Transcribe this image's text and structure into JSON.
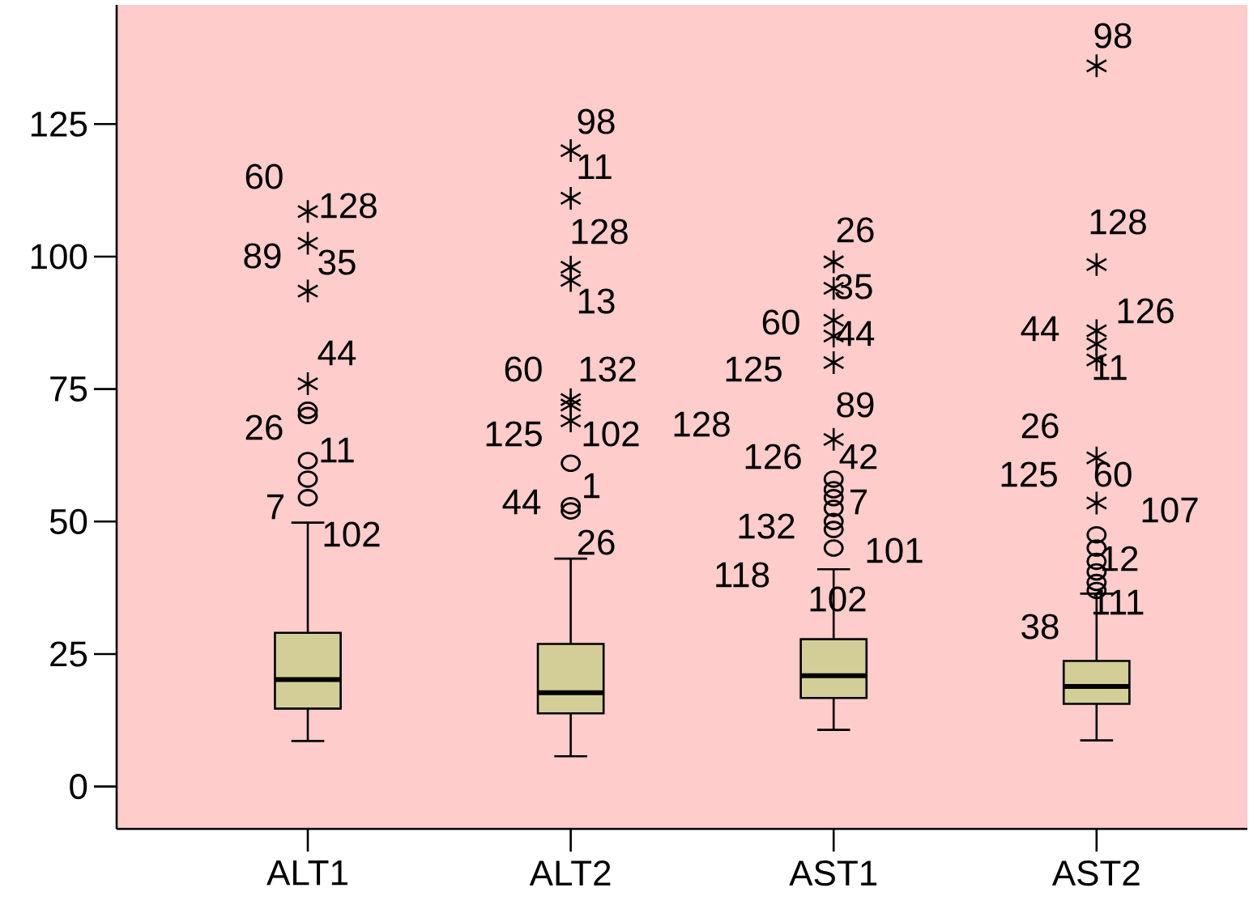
{
  "chart_data": {
    "type": "box",
    "categories": [
      "ALT1",
      "ALT2",
      "AST1",
      "AST2"
    ],
    "color": "#d3ce98",
    "boxes": [
      {
        "low": 8.6,
        "q1": 14.7,
        "median": 20.2,
        "q3": 29,
        "high": 49.8,
        "outliers": [
          108.5,
          102.5,
          93.5,
          76,
          71,
          70,
          61.5,
          58,
          54.5
        ]
      },
      {
        "low": 5.7,
        "q1": 13.8,
        "median": 17.7,
        "q3": 26.9,
        "high": 43,
        "outliers": [
          120,
          111,
          98,
          95.5,
          73,
          72,
          69,
          61,
          53,
          52
        ]
      },
      {
        "low": 10.7,
        "q1": 16.7,
        "median": 20.9,
        "q3": 27.8,
        "high": 41,
        "outliers": [
          99,
          94,
          88,
          85,
          80,
          65.5,
          58,
          56,
          54.5,
          52.5,
          50,
          48.5,
          45
        ]
      },
      {
        "low": 8.7,
        "q1": 15.6,
        "median": 18.9,
        "q3": 23.7,
        "high": 36.4,
        "outliers": [
          136,
          98.5,
          86,
          83.5,
          80.5,
          62,
          53.5,
          47.5,
          45,
          42.5,
          40.5,
          38.5,
          37
        ]
      }
    ],
    "ylim": [
      -8,
      147.5
    ],
    "yticks": [
      0,
      25,
      50,
      75,
      100,
      125
    ],
    "annotations": [
      "60",
      "128",
      "89",
      "35",
      "44",
      "26",
      "11",
      "7",
      "102",
      "98",
      "11",
      "128",
      "13",
      "60",
      "132",
      "125",
      "102",
      "1",
      "44",
      "26",
      "26",
      "35",
      "60",
      "44",
      "125",
      "89",
      "128",
      "126",
      "42",
      "7",
      "132",
      "101",
      "118",
      "102",
      "98",
      "128",
      "126",
      "44",
      "11",
      "26",
      "125",
      "60",
      "107",
      "12",
      "111",
      "38"
    ]
  }
}
